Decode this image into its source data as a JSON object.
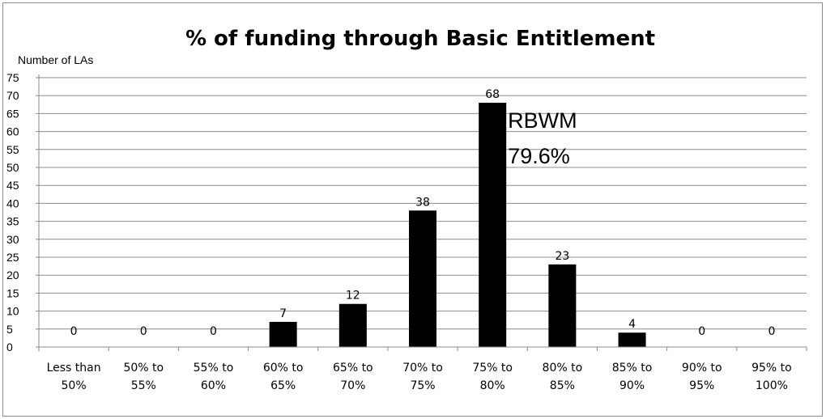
{
  "chart_data": {
    "type": "bar",
    "title": "% of funding through Basic Entitlement",
    "ylabel": "Number of LAs",
    "xlabel": "",
    "ylim": [
      0,
      75
    ],
    "ytick_step": 5,
    "grid": true,
    "legend": "none",
    "bar_color": "#000000",
    "categories": [
      [
        "Less than",
        "50%"
      ],
      [
        "50% to",
        "55%"
      ],
      [
        "55% to",
        "60%"
      ],
      [
        "60% to",
        "65%"
      ],
      [
        "65% to",
        "70%"
      ],
      [
        "70% to",
        "75%"
      ],
      [
        "75% to",
        "80%"
      ],
      [
        "80% to",
        "85%"
      ],
      [
        "85% to",
        "90%"
      ],
      [
        "90% to",
        "95%"
      ],
      [
        "95% to",
        "100%"
      ]
    ],
    "values": [
      0,
      0,
      0,
      7,
      12,
      38,
      68,
      23,
      4,
      0,
      0
    ],
    "annotations": [
      {
        "lines": [
          "RBWM",
          "79.6%"
        ],
        "category_index": 6
      }
    ]
  }
}
